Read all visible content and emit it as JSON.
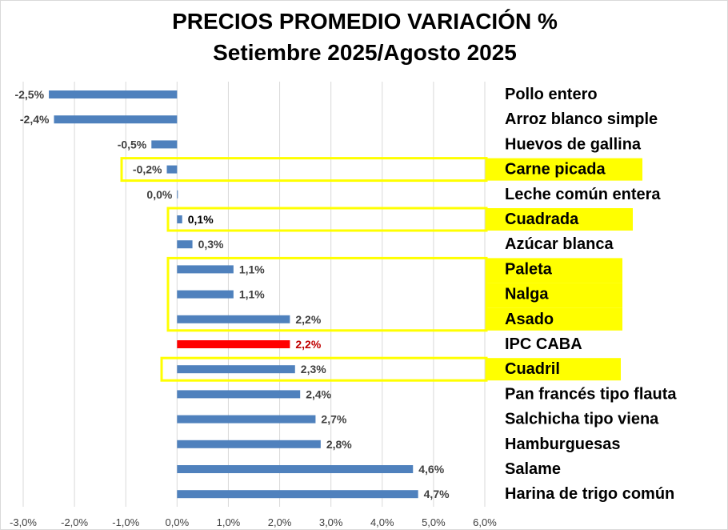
{
  "chart_data": {
    "type": "bar",
    "orientation": "horizontal",
    "title": "PRECIOS PROMEDIO  VARIACIÓN %",
    "subtitle": "Setiembre 2025/Agosto 2025",
    "xlim": [
      -3.0,
      6.0
    ],
    "xticks": [
      "-3,0%",
      "-2,0%",
      "-1,0%",
      "0,0%",
      "1,0%",
      "2,0%",
      "3,0%",
      "4,0%",
      "5,0%",
      "6,0%"
    ],
    "grid": "vertical",
    "colors": {
      "bar": "#4f81bd",
      "highlight_bar": "#ff0000",
      "box": "#ffff00",
      "label": "#404040",
      "highlight_label": "#c00000"
    },
    "categories": [
      "Pollo entero",
      "Arroz blanco simple",
      "Huevos de gallina",
      "Carne picada",
      "Leche común entera",
      "Cuadrada",
      "Azúcar blanca",
      "Paleta",
      "Nalga",
      "Asado",
      "IPC CABA",
      "Cuadril",
      "Pan francés tipo flauta",
      "Salchicha tipo viena",
      "Hamburguesas",
      "Salame",
      "Harina de trigo común"
    ],
    "values": [
      -2.5,
      -2.4,
      -0.5,
      -0.2,
      0.0,
      0.1,
      0.3,
      1.1,
      1.1,
      2.2,
      2.2,
      2.3,
      2.4,
      2.7,
      2.8,
      4.6,
      4.7
    ],
    "labels": [
      "-2,5%",
      "-2,4%",
      "-0,5%",
      "-0,2%",
      "0,0%",
      "0,1%",
      "0,3%",
      "1,1%",
      "1,1%",
      "2,2%",
      "2,2%",
      "2,3%",
      "2,4%",
      "2,7%",
      "2,8%",
      "4,6%",
      "4,7%"
    ],
    "highlighted_bar": "IPC CABA",
    "highlighted_categories": [
      "Carne picada",
      "Cuadrada",
      "Paleta",
      "Nalga",
      "Asado",
      "Cuadril"
    ]
  }
}
